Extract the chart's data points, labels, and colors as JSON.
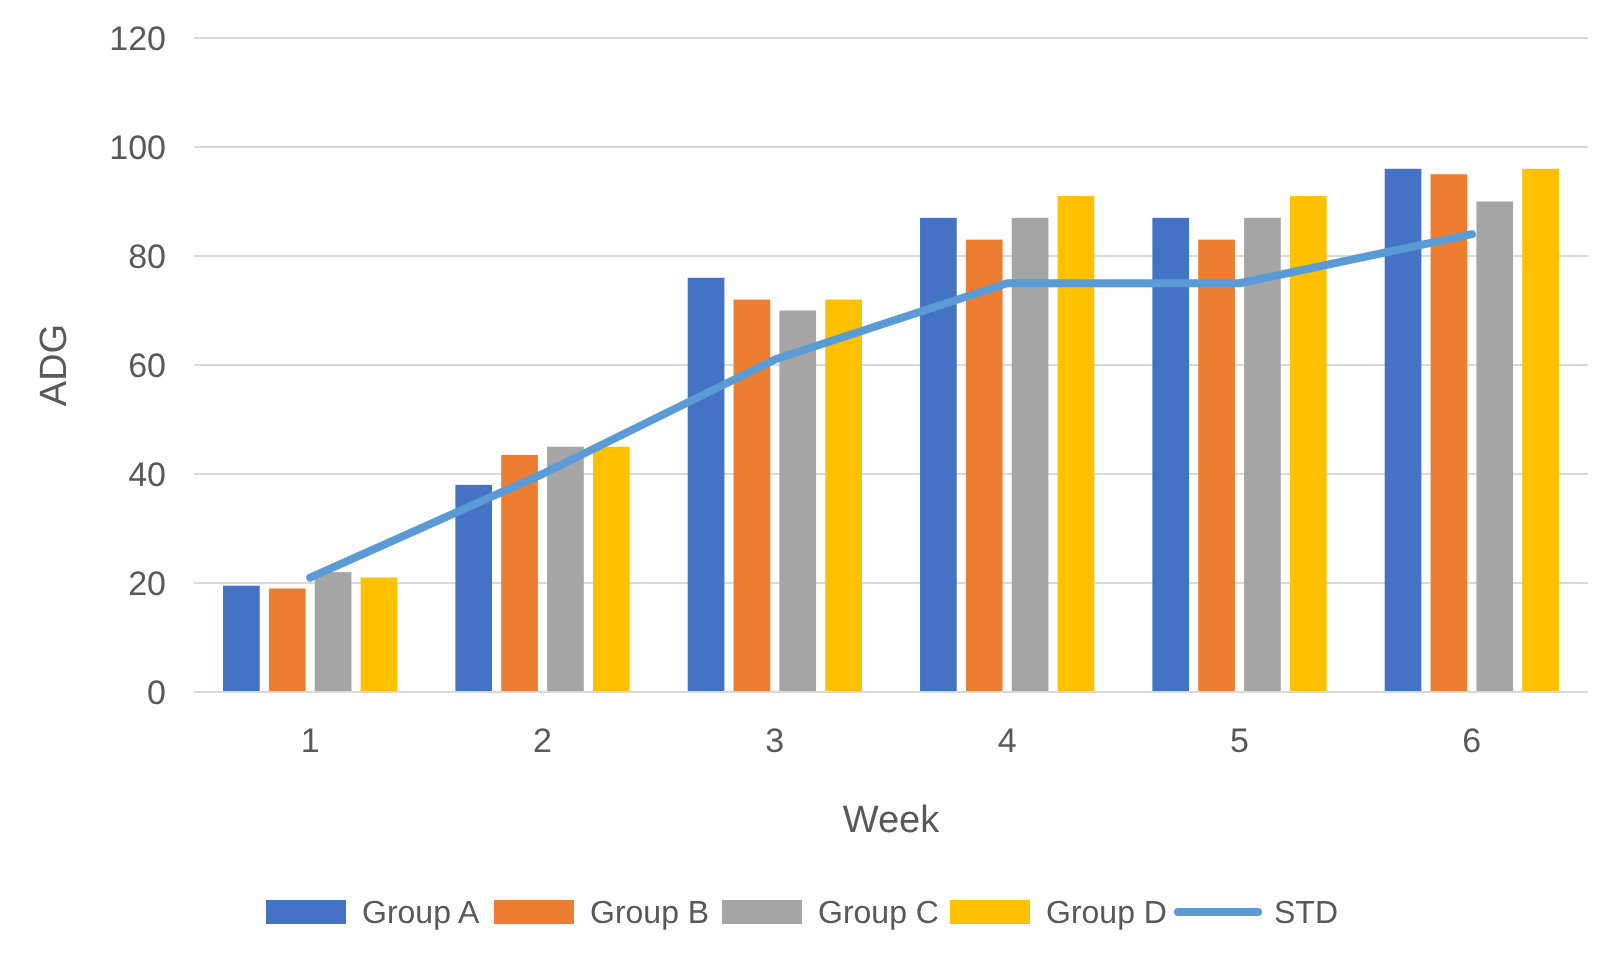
{
  "chart_data": {
    "type": "bar",
    "xlabel": "Week",
    "ylabel": "ADG",
    "categories": [
      "1",
      "2",
      "3",
      "4",
      "5",
      "6"
    ],
    "series": [
      {
        "name": "Group A",
        "color": "#4472c4",
        "values": [
          19.5,
          38,
          76,
          87,
          87,
          96
        ]
      },
      {
        "name": "Group B",
        "color": "#ed7d31",
        "values": [
          19,
          43.5,
          72,
          83,
          83,
          95
        ]
      },
      {
        "name": "Group C",
        "color": "#a5a5a5",
        "values": [
          22,
          45,
          70,
          87,
          87,
          90
        ]
      },
      {
        "name": "Group D",
        "color": "#ffc000",
        "values": [
          21,
          45,
          72,
          91,
          91,
          96
        ]
      },
      {
        "name": "STD",
        "type": "line",
        "color": "#5b9bd5",
        "values": [
          21,
          40,
          61,
          75,
          75,
          84
        ]
      }
    ],
    "ylim": [
      0,
      120
    ],
    "yticks": [
      0,
      20,
      40,
      60,
      80,
      100,
      120
    ],
    "grid": "y",
    "legend": "bottom",
    "marker": "none",
    "line_style": "solid"
  }
}
